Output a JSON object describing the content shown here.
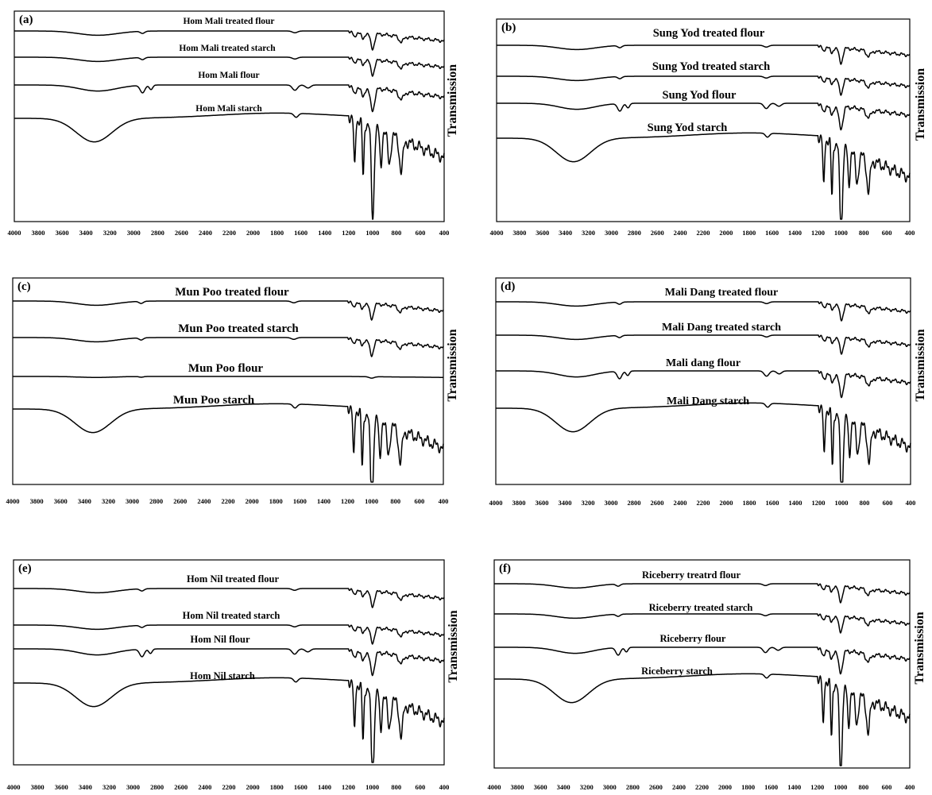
{
  "chart_data": [
    {
      "type": "line",
      "panel": "(a)",
      "ylabel": "Transmission",
      "xlim": [
        4000,
        400
      ],
      "xticks": [
        4000,
        3800,
        3600,
        3400,
        3200,
        3000,
        2800,
        2600,
        2400,
        2200,
        2000,
        1800,
        1600,
        1400,
        1200,
        1000,
        800,
        600,
        400
      ],
      "series": [
        {
          "name": "Hom Mali treated flour",
          "kind": "treated"
        },
        {
          "name": "Hom Mali treated starch",
          "kind": "treated"
        },
        {
          "name": "Hom Mali flour",
          "kind": "flour"
        },
        {
          "name": "Hom Mali starch",
          "kind": "starch"
        }
      ]
    },
    {
      "type": "line",
      "panel": "(b)",
      "ylabel": "Transmission",
      "xlim": [
        4000,
        400
      ],
      "xticks": [
        4000,
        3800,
        3600,
        3400,
        3200,
        3000,
        2800,
        2600,
        2400,
        2200,
        2000,
        1800,
        1600,
        1400,
        1200,
        1000,
        800,
        600,
        400
      ],
      "series": [
        {
          "name": "Sung Yod treated flour",
          "kind": "treated"
        },
        {
          "name": "Sung Yod treated starch",
          "kind": "treated"
        },
        {
          "name": "Sung Yod flour",
          "kind": "flour"
        },
        {
          "name": "Sung Yod starch",
          "kind": "starch"
        }
      ]
    },
    {
      "type": "line",
      "panel": "(c)",
      "ylabel": "Transmission",
      "xlim": [
        4000,
        400
      ],
      "xticks": [
        4000,
        3800,
        3600,
        3400,
        3200,
        3000,
        2800,
        2600,
        2400,
        2200,
        2000,
        1800,
        1600,
        1400,
        1200,
        1000,
        800,
        600,
        400
      ],
      "series": [
        {
          "name": "Mun Poo treated flour",
          "kind": "treated"
        },
        {
          "name": "Mun Poo treated starch",
          "kind": "treated"
        },
        {
          "name": "Mun Poo flour",
          "kind": "flat"
        },
        {
          "name": "Mun Poo starch",
          "kind": "starch"
        }
      ]
    },
    {
      "type": "line",
      "panel": "(d)",
      "ylabel": "Transmission",
      "xlim": [
        4000,
        400
      ],
      "xticks": [
        4000,
        3800,
        3600,
        3400,
        3200,
        3000,
        2800,
        2600,
        2400,
        2200,
        2000,
        1800,
        1600,
        1400,
        1200,
        1000,
        800,
        600,
        400
      ],
      "series": [
        {
          "name": "Mali Dang treated flour",
          "kind": "treated"
        },
        {
          "name": "Mali Dang treated starch",
          "kind": "treated"
        },
        {
          "name": "Mali dang flour",
          "kind": "flour"
        },
        {
          "name": "Mali Dang starch",
          "kind": "starch"
        }
      ]
    },
    {
      "type": "line",
      "panel": "(e)",
      "ylabel": "Transmission",
      "xlim": [
        4000,
        400
      ],
      "xticks": [
        4000,
        3800,
        3600,
        3400,
        3200,
        3000,
        2800,
        2600,
        2400,
        2200,
        2000,
        1800,
        1600,
        1400,
        1200,
        1000,
        800,
        600,
        400
      ],
      "series": [
        {
          "name": "Hom Nil treated flour",
          "kind": "treated"
        },
        {
          "name": "Hom Nil treated starch",
          "kind": "treated"
        },
        {
          "name": "Hom Nil flour",
          "kind": "flour"
        },
        {
          "name": "Hom Nil starch",
          "kind": "starch"
        }
      ]
    },
    {
      "type": "line",
      "panel": "(f)",
      "ylabel": "Transmission",
      "xlim": [
        4000,
        400
      ],
      "xticks": [
        4000,
        3800,
        3600,
        3400,
        3200,
        3000,
        2800,
        2600,
        2400,
        2200,
        2000,
        1800,
        1600,
        1400,
        1200,
        1000,
        800,
        600,
        400
      ],
      "series": [
        {
          "name": "Riceberry treatrd flour",
          "kind": "treated"
        },
        {
          "name": "Riceberry treated starch",
          "kind": "treated"
        },
        {
          "name": "Riceberry flour",
          "kind": "flour"
        },
        {
          "name": "Riceberry starch",
          "kind": "starch"
        }
      ]
    }
  ]
}
